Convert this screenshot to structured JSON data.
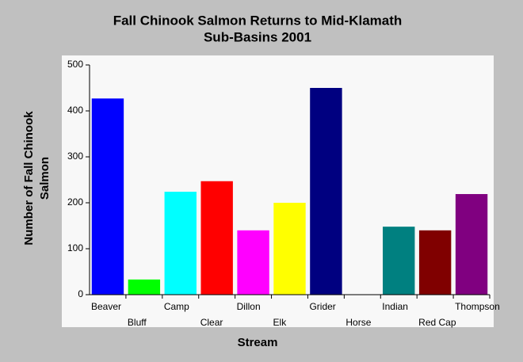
{
  "chart_data": {
    "type": "bar",
    "title": [
      "Fall Chinook Salmon Returns to Mid-Klamath",
      "Sub-Basins 2001"
    ],
    "x_label": "Stream",
    "y_label": [
      "Number of Fall Chinook",
      "Salmon"
    ],
    "categories": [
      "Beaver",
      "Bluff",
      "Camp",
      "Clear",
      "Dillon",
      "Elk",
      "Grider",
      "Horse",
      "Indian",
      "Red Cap",
      "Thompson"
    ],
    "values": [
      427,
      33,
      224,
      247,
      140,
      200,
      450,
      0,
      148,
      140,
      219
    ],
    "colors": [
      "#0000ff",
      "#00ff00",
      "#00ffff",
      "#ff0000",
      "#ff00ff",
      "#ffff00",
      "#000080",
      "#808000",
      "#008080",
      "#800000",
      "#800080"
    ],
    "ylim": [
      0,
      500
    ],
    "yticks": [
      0,
      100,
      200,
      300,
      400,
      500
    ],
    "grid": false
  }
}
